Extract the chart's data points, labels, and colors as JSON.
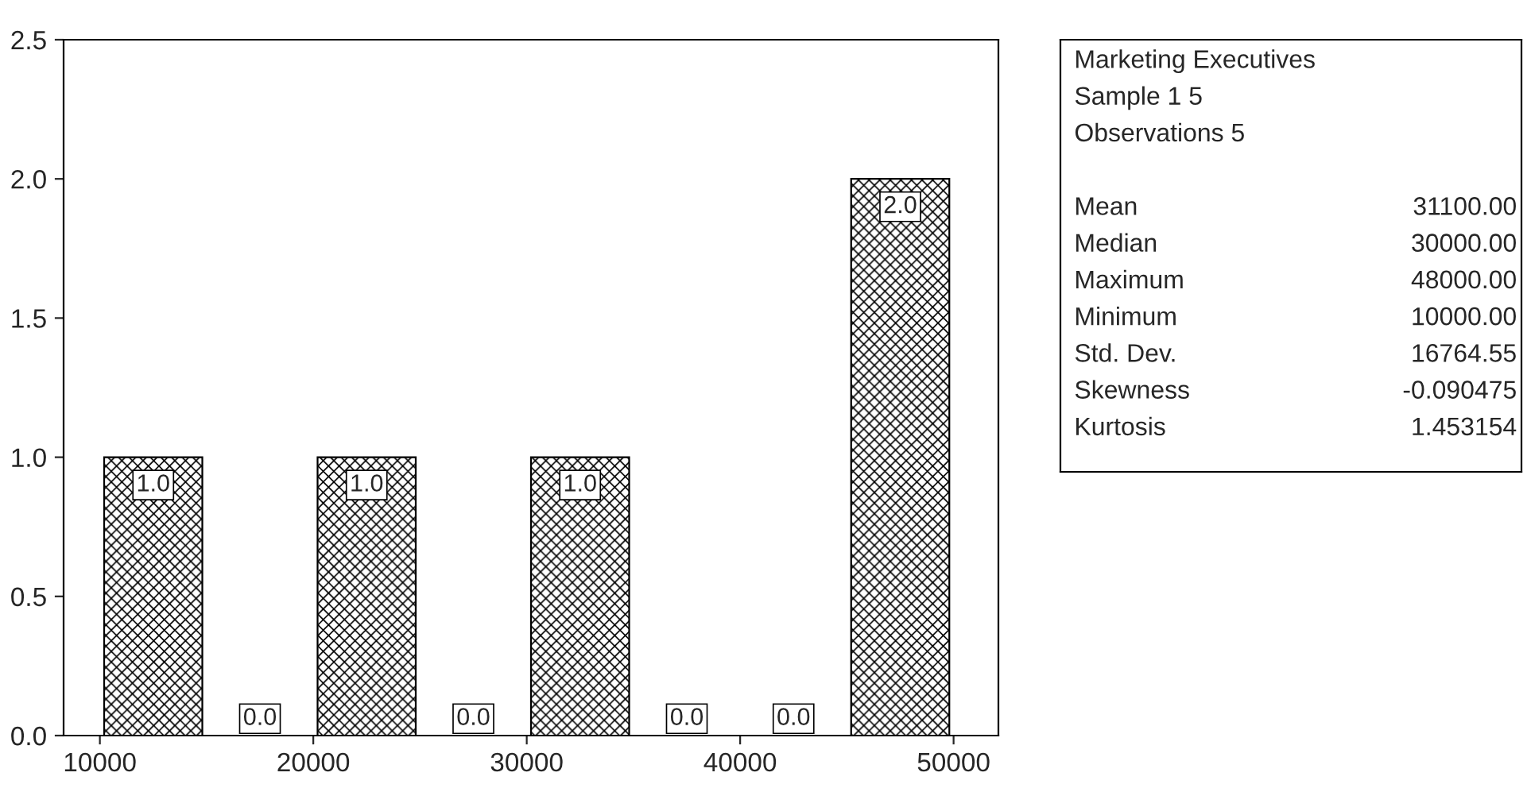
{
  "chart_data": [
    {
      "type": "histogram",
      "bins": [
        10000,
        15000,
        20000,
        25000,
        30000,
        35000,
        40000,
        45000,
        50000
      ],
      "values": [
        1,
        0,
        1,
        0,
        1,
        0,
        0,
        2
      ],
      "value_labels": [
        "1.0",
        "0.0",
        "1.0",
        "0.0",
        "1.0",
        "0.0",
        "0.0",
        "2.0"
      ],
      "color": "#000000",
      "xlim": [
        8300,
        52100
      ],
      "xticks": [
        10000,
        20000,
        30000,
        40000,
        50000
      ],
      "ylim": [
        0,
        2.5
      ],
      "yticks": [
        {
          "value": 0,
          "label": "0.0"
        },
        {
          "value": 0.5,
          "label": "0.5"
        },
        {
          "value": 1,
          "label": "1.0"
        },
        {
          "value": 1.5,
          "label": "1.5"
        },
        {
          "value": 2,
          "label": "2.0"
        },
        {
          "value": 2.5,
          "label": "2.5"
        }
      ],
      "grid": false
    },
    {
      "type": "other",
      "title": "Marketing Executives",
      "subtitle": "Sample 1 5",
      "annotations": [
        "Observations 5"
      ],
      "categories": [
        "Mean",
        "Median",
        "Maximum",
        "Minimum",
        "Std. Dev.",
        "Skewness",
        "Kurtosis"
      ],
      "value_labels": [
        "31100.00",
        "30000.00",
        "48000.00",
        "10000.00",
        "16764.55",
        "-0.090475",
        "1.453154"
      ]
    }
  ]
}
